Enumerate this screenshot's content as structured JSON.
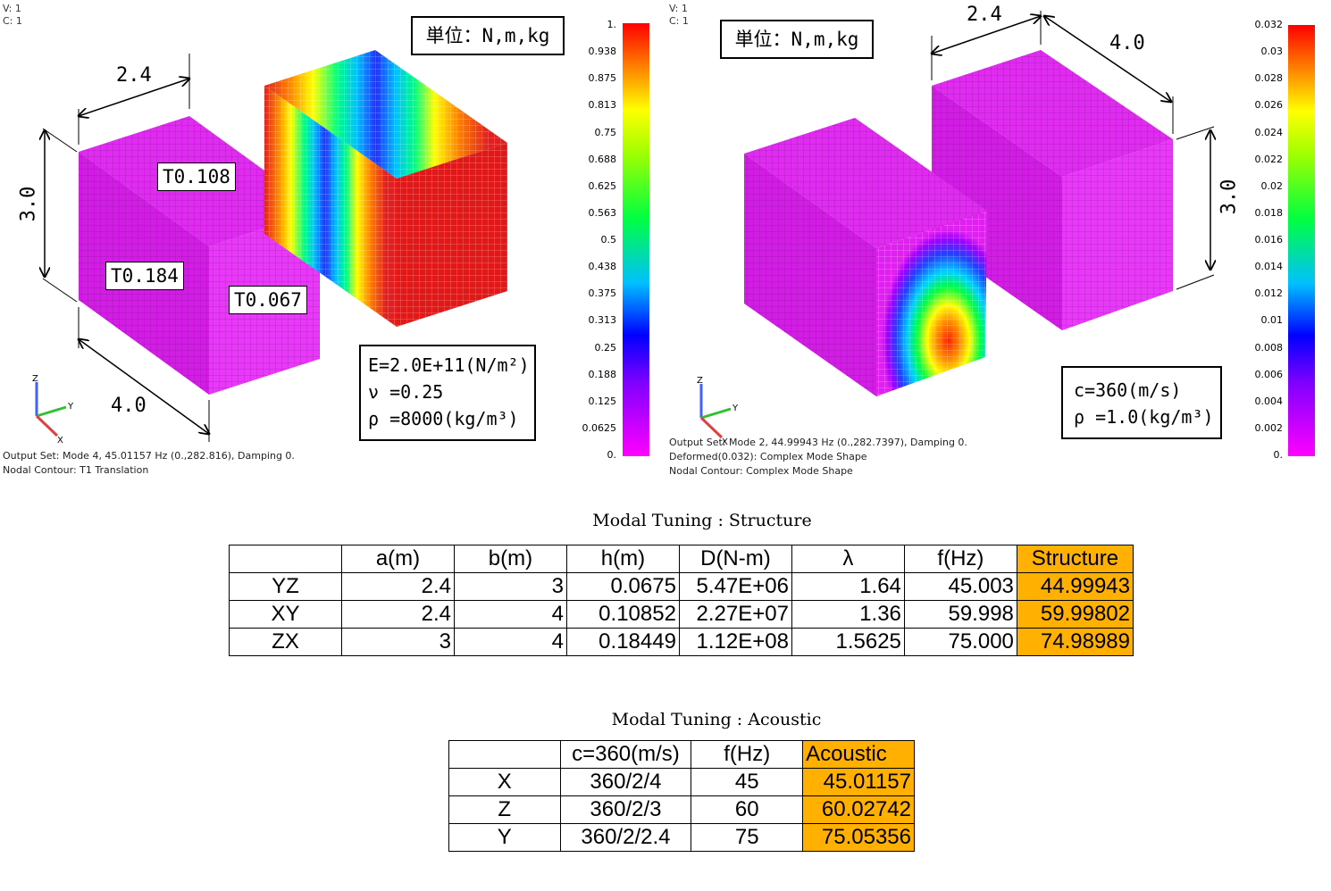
{
  "left_view": {
    "vc_labels": [
      "V: 1",
      "C: 1"
    ],
    "units_box": "単位：N,m,kg",
    "dims": {
      "width": "2.4",
      "height": "3.0",
      "depth": "4.0"
    },
    "thickness_labels": [
      "T0.108",
      "T0.184",
      "T0.067"
    ],
    "material": {
      "E": "E=2.0E+11(N/m²)",
      "nu": "ν =0.25",
      "rho": "ρ =8000(kg/m³)"
    },
    "output_info": [
      "Output Set: Mode 4, 45.01157 Hz (0.,282.816), Damping 0.",
      "Nodal Contour: T1 Translation"
    ],
    "scale": [
      "1.",
      "0.938",
      "0.875",
      "0.813",
      "0.75",
      "0.688",
      "0.625",
      "0.563",
      "0.5",
      "0.438",
      "0.375",
      "0.313",
      "0.25",
      "0.188",
      "0.125",
      "0.0625",
      "0."
    ]
  },
  "right_view": {
    "vc_labels": [
      "V: 1",
      "C: 1"
    ],
    "units_box": "単位：N,m,kg",
    "dims": {
      "width": "2.4",
      "depth": "4.0",
      "height": "3.0"
    },
    "material": {
      "c": "c=360(m/s)",
      "rho": "ρ =1.0(kg/m³)"
    },
    "output_info": [
      "Output Set: Mode 2, 44.99943 Hz (0.,282.7397), Damping 0.",
      "Deformed(0.032): Complex Mode Shape",
      "Nodal Contour: Complex Mode Shape"
    ],
    "scale": [
      "0.032",
      "0.03",
      "0.028",
      "0.026",
      "0.024",
      "0.022",
      "0.02",
      "0.018",
      "0.016",
      "0.014",
      "0.012",
      "0.01",
      "0.008",
      "0.006",
      "0.004",
      "0.002",
      "0."
    ]
  },
  "axis_triad": {
    "x": "X",
    "y": "Y",
    "z": "Z"
  },
  "structure_table": {
    "caption": "Modal Tuning : Structure",
    "headers": [
      "",
      "a(m)",
      "b(m)",
      "h(m)",
      "D(N-m)",
      "λ",
      "f(Hz)",
      "Structure"
    ],
    "rows": [
      [
        "YZ",
        "2.4",
        "3",
        "0.0675",
        "5.47E+06",
        "1.64",
        "45.003",
        "44.99943"
      ],
      [
        "XY",
        "2.4",
        "4",
        "0.10852",
        "2.27E+07",
        "1.36",
        "59.998",
        "59.99802"
      ],
      [
        "ZX",
        "3",
        "4",
        "0.18449",
        "1.12E+08",
        "1.5625",
        "75.000",
        "74.98989"
      ]
    ]
  },
  "acoustic_table": {
    "caption": "Modal Tuning : Acoustic",
    "headers": [
      "",
      "c=360(m/s)",
      "f(Hz)",
      "Acoustic"
    ],
    "rows": [
      [
        "X",
        "360/2/4",
        "45",
        "45.01157"
      ],
      [
        "Z",
        "360/2/3",
        "60",
        "60.02742"
      ],
      [
        "Y",
        "360/2/2.4",
        "75",
        "75.05356"
      ]
    ]
  },
  "colors": {
    "highlight": "#ffb000",
    "mesh_magenta": "#e020f0",
    "mesh_red": "#e01010"
  }
}
